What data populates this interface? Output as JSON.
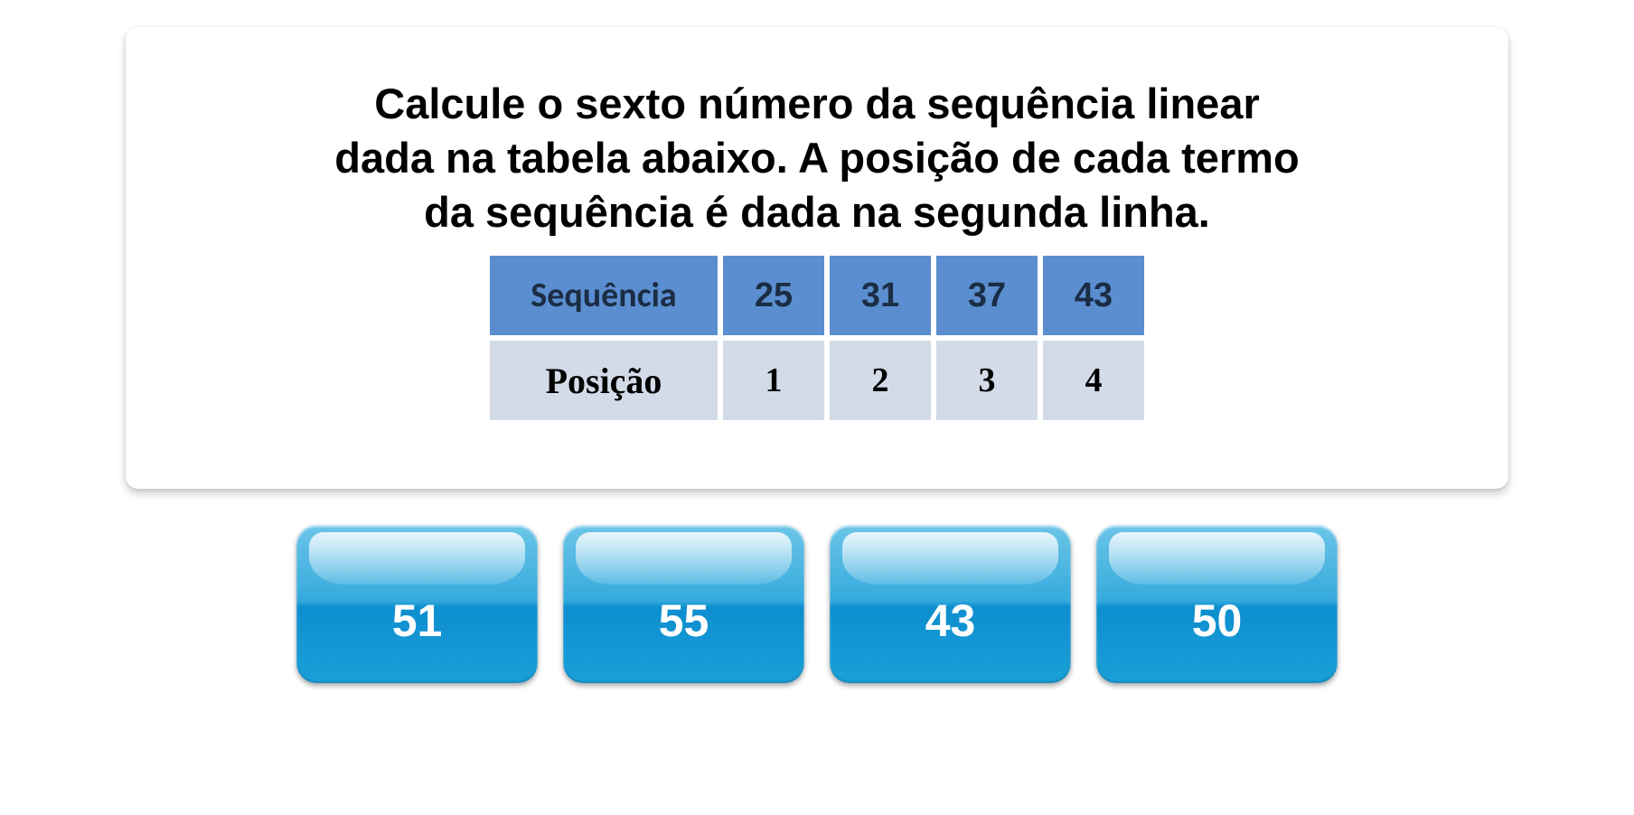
{
  "question": {
    "line1": "Calcule o sexto número da sequência linear",
    "line2": "dada na tabela abaixo. A posição de cada termo",
    "line3": "da sequência é dada na segunda linha."
  },
  "table": {
    "header_label": "Sequência",
    "header_values": [
      "25",
      "31",
      "37",
      "43"
    ],
    "body_label": "Posição",
    "body_values": [
      "1",
      "2",
      "3",
      "4"
    ],
    "header_bg": "#5b8ed0",
    "body_bg": "#d4dbe8",
    "cell_spacing": 6
  },
  "answers": [
    {
      "label": "51"
    },
    {
      "label": "55"
    },
    {
      "label": "43"
    },
    {
      "label": "50"
    }
  ],
  "styles": {
    "card_bg": "#ffffff",
    "card_shadow": "0 6px 10px rgba(0,0,0,0.18)",
    "question_fontsize": 47,
    "question_color": "#000000",
    "button_gradient_top": "#6cc5e8",
    "button_gradient_mid1": "#35aadd",
    "button_gradient_mid2": "#0d8ecf",
    "button_gradient_bottom": "#1ba0d8",
    "button_text_color": "#ffffff",
    "button_fontsize": 50,
    "button_radius": 22,
    "button_width": 267,
    "button_height": 175
  }
}
